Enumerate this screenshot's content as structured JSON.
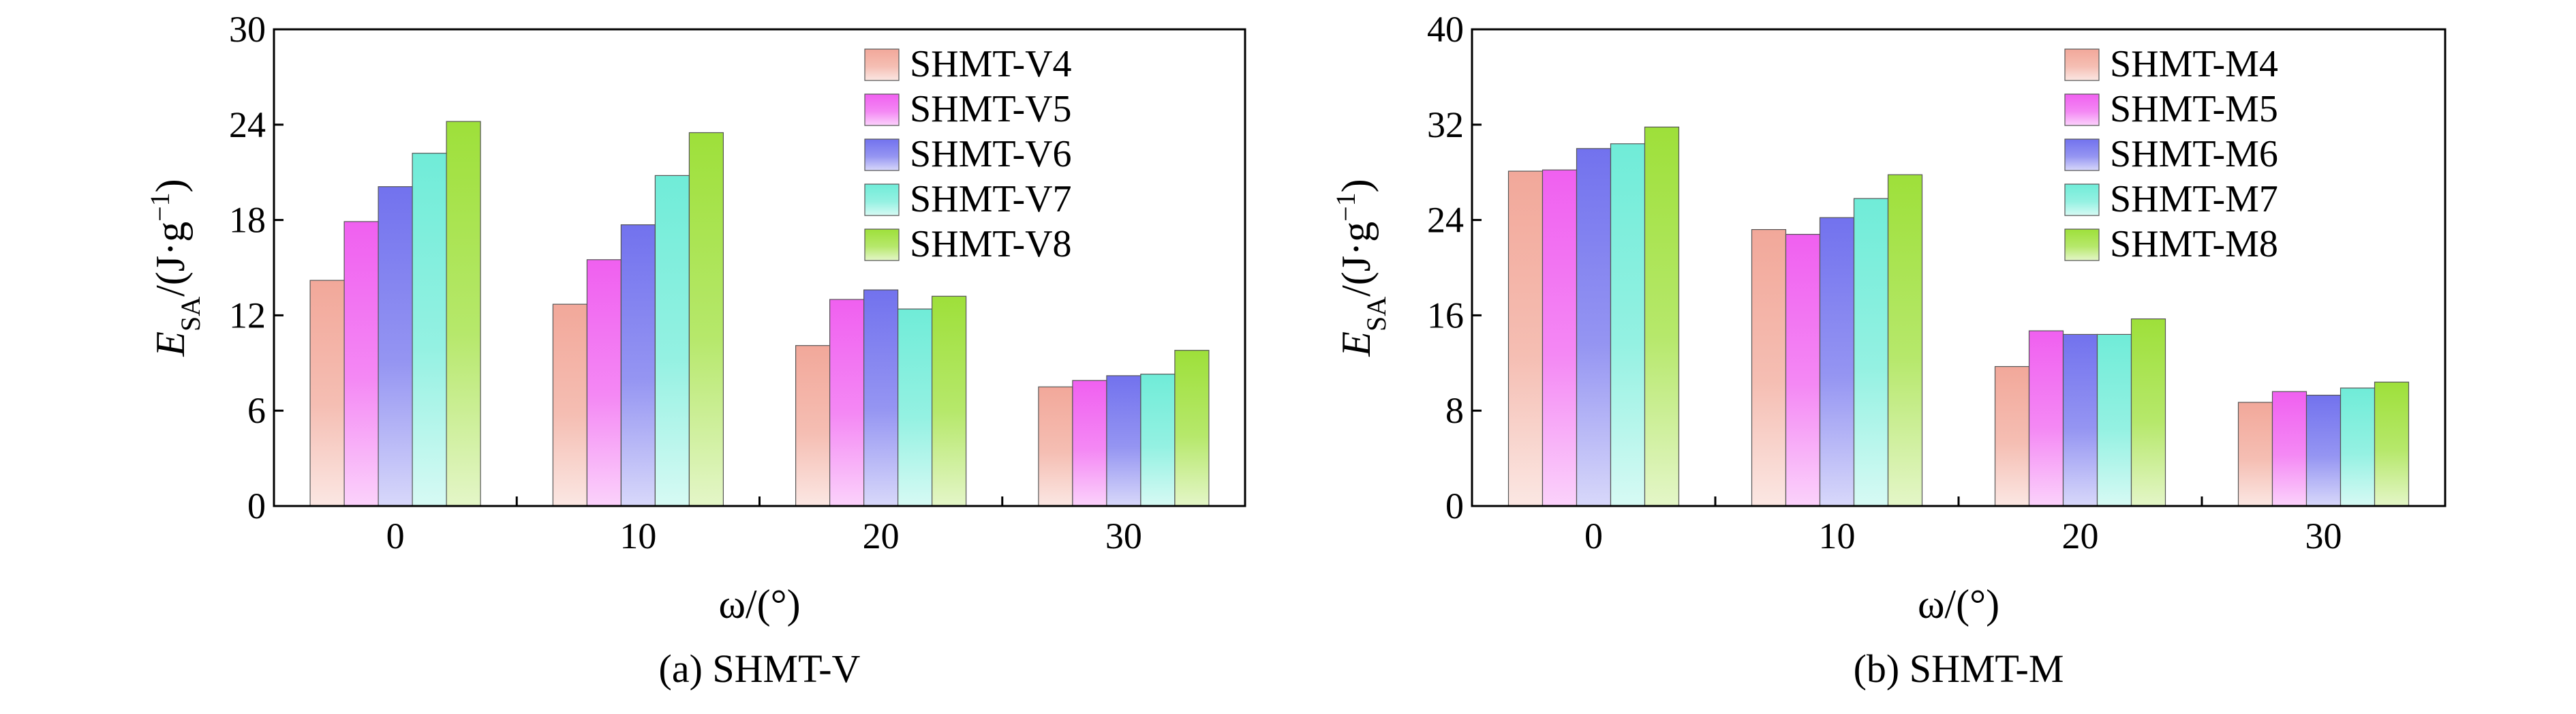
{
  "chart_data": [
    {
      "type": "bar",
      "caption": "(a) SHMT-V",
      "xlabel": "ω/(°)",
      "ylabel_main": "E",
      "ylabel_sub": "SA",
      "ylabel_units": "/(J·g",
      "ylabel_exp": "−1",
      "ylabel_close": ")",
      "ylim": [
        0,
        30
      ],
      "yticks": [
        "0",
        "6",
        "12",
        "18",
        "24",
        "30"
      ],
      "categories": [
        "0",
        "10",
        "20",
        "30"
      ],
      "legend_position": "top-right",
      "series": [
        {
          "name": "SHMT-V4",
          "color": "#f2a89a",
          "values": [
            14.2,
            12.7,
            10.1,
            7.5
          ]
        },
        {
          "name": "SHMT-V5",
          "color": "#f060f0",
          "values": [
            17.9,
            15.5,
            13.0,
            7.9
          ]
        },
        {
          "name": "SHMT-V6",
          "color": "#7272ee",
          "values": [
            20.1,
            17.7,
            13.6,
            8.2
          ]
        },
        {
          "name": "SHMT-V7",
          "color": "#70ecd8",
          "values": [
            22.2,
            20.8,
            12.4,
            8.3
          ]
        },
        {
          "name": "SHMT-V8",
          "color": "#9ee03a",
          "values": [
            24.2,
            23.5,
            13.2,
            9.8
          ]
        }
      ]
    },
    {
      "type": "bar",
      "caption": "(b) SHMT-M",
      "xlabel": "ω/(°)",
      "ylabel_main": "E",
      "ylabel_sub": "SA",
      "ylabel_units": "/(J·g",
      "ylabel_exp": "−1",
      "ylabel_close": ")",
      "ylim": [
        0,
        40
      ],
      "yticks": [
        "0",
        "8",
        "16",
        "24",
        "32",
        "40"
      ],
      "categories": [
        "0",
        "10",
        "20",
        "30"
      ],
      "legend_position": "top-right",
      "series": [
        {
          "name": "SHMT-M4",
          "color": "#f2a89a",
          "values": [
            28.1,
            23.2,
            11.7,
            8.7
          ]
        },
        {
          "name": "SHMT-M5",
          "color": "#f060f0",
          "values": [
            28.2,
            22.8,
            14.7,
            9.6
          ]
        },
        {
          "name": "SHMT-M6",
          "color": "#7272ee",
          "values": [
            30.0,
            24.2,
            14.4,
            9.3
          ]
        },
        {
          "name": "SHMT-M7",
          "color": "#70ecd8",
          "values": [
            30.4,
            25.8,
            14.4,
            9.9
          ]
        },
        {
          "name": "SHMT-M8",
          "color": "#9ee03a",
          "values": [
            31.8,
            27.8,
            15.7,
            10.4
          ]
        }
      ]
    }
  ]
}
